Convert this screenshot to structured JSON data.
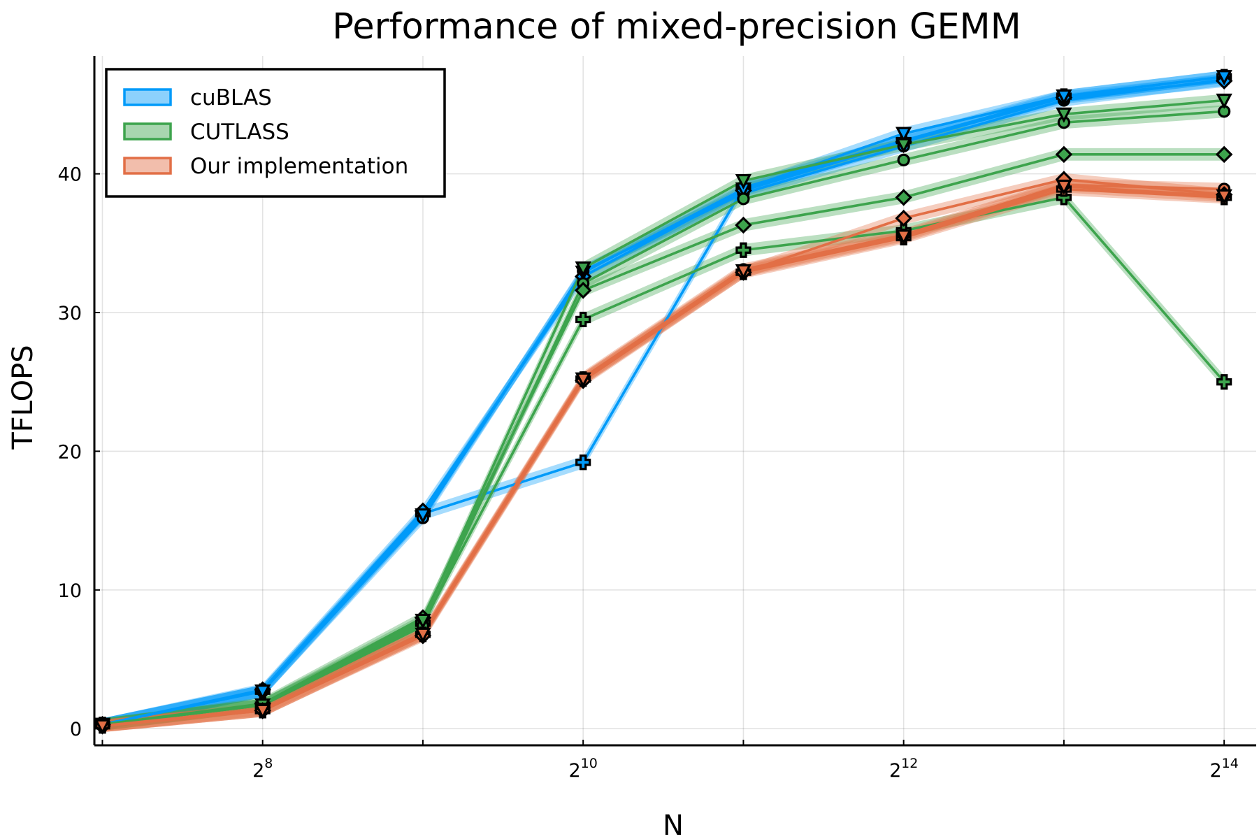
{
  "chart_data": {
    "type": "line",
    "title": "Performance of mixed-precision GEMM",
    "xlabel": "N",
    "ylabel": "TFLOPS",
    "x_scale": "log2",
    "xlim_log2": [
      6.95,
      14.2
    ],
    "ylim": [
      -1.2,
      48.5
    ],
    "x_ticks": [
      {
        "exp": 8,
        "base": "2",
        "sup": "8"
      },
      {
        "exp": 10,
        "base": "2",
        "sup": "10"
      },
      {
        "exp": 12,
        "base": "2",
        "sup": "12"
      },
      {
        "exp": 14,
        "base": "2",
        "sup": "14"
      }
    ],
    "x_minor_ticks_exp": [
      7,
      9,
      11,
      13
    ],
    "y_ticks": [
      0,
      10,
      20,
      30,
      40
    ],
    "y_tick_labels": [
      "0",
      "10",
      "20",
      "30",
      "40"
    ],
    "grid": true,
    "legend": {
      "position": "top-left",
      "entries": [
        {
          "label": "cuBLAS",
          "color": "#009af9"
        },
        {
          "label": "CUTLASS",
          "color": "#3da44d"
        },
        {
          "label": "Our implementation",
          "color": "#e26f46"
        }
      ]
    },
    "series": [
      {
        "name": "cuBLAS",
        "group": "cuBLAS",
        "marker": "cross",
        "x_log2": [
          7,
          8,
          9,
          10,
          11,
          12,
          13,
          14
        ],
        "values": [
          0.3,
          2.7,
          15.5,
          19.2,
          39.0,
          42.4,
          45.6,
          47.0
        ]
      },
      {
        "name": "cuBLAS",
        "group": "cuBLAS",
        "marker": "circle",
        "x_log2": [
          7,
          8,
          9,
          10,
          11,
          12,
          13,
          14
        ],
        "values": [
          0.3,
          2.7,
          15.2,
          33.0,
          38.6,
          42.0,
          45.3,
          46.8
        ]
      },
      {
        "name": "cuBLAS",
        "group": "cuBLAS",
        "marker": "diamond",
        "x_log2": [
          7,
          8,
          9,
          10,
          11,
          12,
          13,
          14
        ],
        "values": [
          0.3,
          2.8,
          15.7,
          32.6,
          38.8,
          42.3,
          45.5,
          46.7
        ]
      },
      {
        "name": "cuBLAS",
        "group": "cuBLAS",
        "marker": "triangle",
        "x_log2": [
          7,
          8,
          9,
          10,
          11,
          12,
          13,
          14
        ],
        "values": [
          0.3,
          2.7,
          15.4,
          32.9,
          38.9,
          42.9,
          45.6,
          47.0
        ]
      },
      {
        "name": "CUTLASS",
        "group": "CUTLASS",
        "marker": "cross",
        "x_log2": [
          7,
          8,
          9,
          10,
          11,
          12,
          13,
          14
        ],
        "values": [
          0.3,
          1.7,
          7.6,
          29.5,
          34.5,
          35.9,
          38.3,
          25.0
        ]
      },
      {
        "name": "CUTLASS",
        "group": "CUTLASS",
        "marker": "circle",
        "x_log2": [
          7,
          8,
          9,
          10,
          11,
          12,
          13,
          14
        ],
        "values": [
          0.3,
          1.7,
          7.4,
          32.1,
          38.2,
          41.0,
          43.7,
          44.5
        ]
      },
      {
        "name": "CUTLASS",
        "group": "CUTLASS",
        "marker": "diamond",
        "x_log2": [
          7,
          8,
          9,
          10,
          11,
          12,
          13,
          14
        ],
        "values": [
          0.3,
          1.8,
          8.0,
          31.6,
          36.3,
          38.3,
          41.4,
          41.4
        ]
      },
      {
        "name": "CUTLASS",
        "group": "CUTLASS",
        "marker": "triangle",
        "x_log2": [
          7,
          8,
          9,
          10,
          11,
          12,
          13,
          14
        ],
        "values": [
          0.3,
          1.7,
          7.8,
          33.2,
          39.5,
          42.1,
          44.3,
          45.3
        ]
      },
      {
        "name": "Our implementation",
        "group": "Our implementation",
        "marker": "cross",
        "x_log2": [
          7,
          8,
          9,
          10,
          11,
          12,
          13,
          14
        ],
        "values": [
          0.2,
          1.3,
          6.8,
          25.2,
          32.9,
          35.4,
          38.9,
          38.3
        ]
      },
      {
        "name": "Our implementation",
        "group": "Our implementation",
        "marker": "circle",
        "x_log2": [
          7,
          8,
          9,
          10,
          11,
          12,
          13,
          14
        ],
        "values": [
          0.2,
          1.4,
          6.9,
          25.3,
          33.1,
          35.6,
          39.2,
          38.9
        ]
      },
      {
        "name": "Our implementation",
        "group": "Our implementation",
        "marker": "diamond",
        "x_log2": [
          7,
          8,
          9,
          10,
          11,
          12,
          13,
          14
        ],
        "values": [
          0.2,
          1.3,
          6.7,
          25.1,
          32.9,
          36.8,
          39.6,
          38.5
        ]
      },
      {
        "name": "Our implementation",
        "group": "Our implementation",
        "marker": "triangle",
        "x_log2": [
          7,
          8,
          9,
          10,
          11,
          12,
          13,
          14
        ],
        "values": [
          0.2,
          1.3,
          6.8,
          25.2,
          33.0,
          35.5,
          39.1,
          38.4
        ]
      }
    ]
  }
}
